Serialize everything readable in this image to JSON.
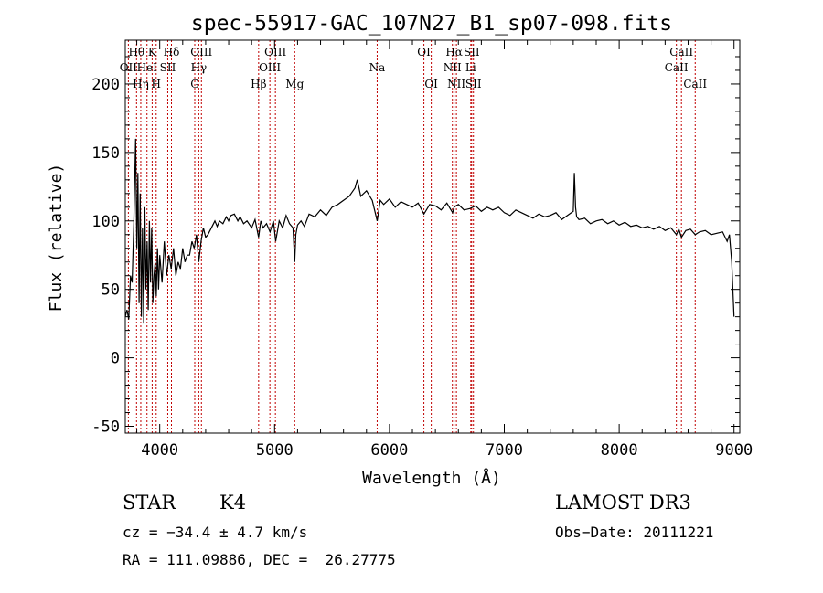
{
  "chart_data": {
    "type": "line",
    "title": "spec-55917-GAC_107N27_B1_sp07-098.fits",
    "xlabel": "Wavelength (Å)",
    "ylabel": "Flux (relative)",
    "xlim": [
      3700,
      9050
    ],
    "ylim": [
      -55,
      232
    ],
    "xticks": [
      4000,
      5000,
      6000,
      7000,
      8000,
      9000
    ],
    "xtick_labels": [
      "4000",
      "5000",
      "6000",
      "7000",
      "8000",
      "9000"
    ],
    "yticks": [
      -50,
      0,
      50,
      100,
      150,
      200
    ],
    "ytick_labels": [
      "-50",
      "0",
      "50",
      "100",
      "150",
      "200"
    ],
    "spectral_lines": [
      {
        "label": "Hθ",
        "wavelength": 3798,
        "row": 1
      },
      {
        "label": "OII",
        "wavelength": 3727,
        "row": 2
      },
      {
        "label": "Hη",
        "wavelength": 3835,
        "row": 3
      },
      {
        "label": "K",
        "wavelength": 3934,
        "row": 1
      },
      {
        "label": "HeI",
        "wavelength": 3889,
        "row": 2
      },
      {
        "label": "H",
        "wavelength": 3969,
        "row": 3
      },
      {
        "label": "Hδ",
        "wavelength": 4102,
        "row": 1
      },
      {
        "label": "SII",
        "wavelength": 4070,
        "row": 2
      },
      {
        "label": "OIII",
        "wavelength": 4363,
        "row": 1
      },
      {
        "label": "Hγ",
        "wavelength": 4340,
        "row": 2
      },
      {
        "label": "G",
        "wavelength": 4305,
        "row": 3
      },
      {
        "label": "Hβ",
        "wavelength": 4861,
        "row": 3
      },
      {
        "label": "OIII",
        "wavelength": 5007,
        "row": 1
      },
      {
        "label": "OIII",
        "wavelength": 4959,
        "row": 2
      },
      {
        "label": "Mg",
        "wavelength": 5175,
        "row": 3
      },
      {
        "label": "Na",
        "wavelength": 5893,
        "row": 2
      },
      {
        "label": "OI",
        "wavelength": 6300,
        "row": 1
      },
      {
        "label": "OI",
        "wavelength": 6364,
        "row": 3
      },
      {
        "label": "Hα",
        "wavelength": 6563,
        "row": 1
      },
      {
        "label": "NII",
        "wavelength": 6548,
        "row": 2
      },
      {
        "label": "NII",
        "wavelength": 6583,
        "row": 3
      },
      {
        "label": "SII",
        "wavelength": 6716,
        "row": 1
      },
      {
        "label": "Li",
        "wavelength": 6708,
        "row": 2
      },
      {
        "label": "SII",
        "wavelength": 6731,
        "row": 3
      },
      {
        "label": "CaII",
        "wavelength": 8542,
        "row": 1
      },
      {
        "label": "CaII",
        "wavelength": 8498,
        "row": 2
      },
      {
        "label": "CaII",
        "wavelength": 8662,
        "row": 3
      }
    ],
    "series": [
      {
        "name": "flux",
        "x": [
          3700,
          3715,
          3730,
          3745,
          3760,
          3775,
          3790,
          3800,
          3810,
          3820,
          3830,
          3840,
          3850,
          3860,
          3870,
          3880,
          3890,
          3900,
          3910,
          3920,
          3930,
          3940,
          3950,
          3960,
          3970,
          3980,
          3990,
          4000,
          4020,
          4040,
          4060,
          4080,
          4100,
          4120,
          4140,
          4160,
          4180,
          4200,
          4220,
          4240,
          4260,
          4280,
          4300,
          4320,
          4340,
          4360,
          4380,
          4400,
          4420,
          4450,
          4480,
          4500,
          4520,
          4550,
          4580,
          4600,
          4620,
          4650,
          4680,
          4700,
          4730,
          4760,
          4800,
          4830,
          4861,
          4880,
          4900,
          4930,
          4960,
          4990,
          5010,
          5040,
          5070,
          5100,
          5130,
          5160,
          5175,
          5185,
          5200,
          5230,
          5260,
          5300,
          5350,
          5400,
          5450,
          5500,
          5550,
          5600,
          5650,
          5700,
          5720,
          5750,
          5800,
          5850,
          5893,
          5920,
          5950,
          6000,
          6050,
          6100,
          6150,
          6200,
          6250,
          6300,
          6350,
          6400,
          6450,
          6500,
          6550,
          6563,
          6600,
          6650,
          6700,
          6750,
          6800,
          6850,
          6900,
          6950,
          7000,
          7050,
          7100,
          7150,
          7200,
          7250,
          7300,
          7350,
          7400,
          7450,
          7500,
          7550,
          7600,
          7610,
          7620,
          7630,
          7650,
          7700,
          7750,
          7800,
          7850,
          7900,
          7950,
          8000,
          8050,
          8100,
          8150,
          8200,
          8250,
          8300,
          8350,
          8400,
          8450,
          8498,
          8520,
          8542,
          8580,
          8620,
          8662,
          8700,
          8750,
          8800,
          8850,
          8900,
          8940,
          8960,
          8980,
          9000
        ],
        "y": [
          30,
          35,
          28,
          60,
          55,
          100,
          160,
          80,
          135,
          40,
          120,
          30,
          95,
          25,
          110,
          50,
          85,
          35,
          100,
          55,
          95,
          40,
          60,
          70,
          45,
          80,
          50,
          75,
          55,
          85,
          60,
          75,
          65,
          80,
          60,
          70,
          65,
          80,
          70,
          75,
          75,
          85,
          80,
          90,
          70,
          85,
          95,
          88,
          90,
          95,
          100,
          96,
          100,
          98,
          103,
          100,
          104,
          105,
          100,
          103,
          98,
          100,
          95,
          101,
          88,
          100,
          95,
          98,
          92,
          100,
          85,
          100,
          95,
          104,
          98,
          95,
          70,
          90,
          97,
          100,
          96,
          105,
          103,
          108,
          104,
          110,
          112,
          115,
          118,
          124,
          130,
          118,
          122,
          115,
          100,
          115,
          112,
          116,
          110,
          114,
          112,
          110,
          113,
          105,
          112,
          111,
          108,
          113,
          106,
          110,
          112,
          108,
          109,
          111,
          107,
          110,
          108,
          110,
          106,
          104,
          108,
          106,
          104,
          102,
          105,
          103,
          104,
          106,
          101,
          104,
          107,
          135,
          110,
          103,
          101,
          102,
          98,
          100,
          101,
          98,
          100,
          97,
          99,
          96,
          97,
          95,
          96,
          94,
          96,
          93,
          95,
          90,
          94,
          88,
          93,
          94,
          90,
          92,
          93,
          90,
          91,
          92,
          85,
          90,
          70,
          30
        ]
      }
    ]
  },
  "info": {
    "object_class": "STAR",
    "subclass": "K4",
    "survey": "LAMOST DR3",
    "redshift": "cz = −34.4 ± 4.7 km/s",
    "obs_date": "Obs−Date: 20111221",
    "coords": "RA = 111.09886, DEC =  26.27775"
  }
}
